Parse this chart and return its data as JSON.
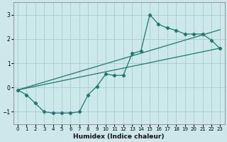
{
  "xlabel": "Humidex (Indice chaleur)",
  "background_color": "#cce8ea",
  "grid_color": "#aacccc",
  "line_color": "#1a7a6e",
  "xlim": [
    -0.5,
    23.5
  ],
  "ylim": [
    -1.5,
    3.5
  ],
  "yticks": [
    -1,
    0,
    1,
    2,
    3
  ],
  "xticks": [
    0,
    1,
    2,
    3,
    4,
    5,
    6,
    7,
    8,
    9,
    10,
    11,
    12,
    13,
    14,
    15,
    16,
    17,
    18,
    19,
    20,
    21,
    22,
    23
  ],
  "line1_x": [
    0,
    1,
    2,
    3,
    4,
    5,
    6,
    7,
    8,
    9,
    10,
    11,
    12,
    13,
    14,
    15,
    16,
    17,
    18,
    19,
    20,
    21,
    22,
    23
  ],
  "line1_y": [
    -0.1,
    -0.3,
    -0.65,
    -1.0,
    -1.05,
    -1.05,
    -1.05,
    -1.0,
    -0.3,
    0.05,
    0.55,
    0.5,
    0.5,
    1.4,
    1.5,
    3.0,
    2.6,
    2.45,
    2.35,
    2.2,
    2.2,
    2.2,
    1.95,
    1.6
  ],
  "line2_x": [
    0,
    23
  ],
  "line2_y": [
    -0.1,
    1.62
  ],
  "line3_x": [
    0,
    23
  ],
  "line3_y": [
    -0.1,
    2.38
  ]
}
